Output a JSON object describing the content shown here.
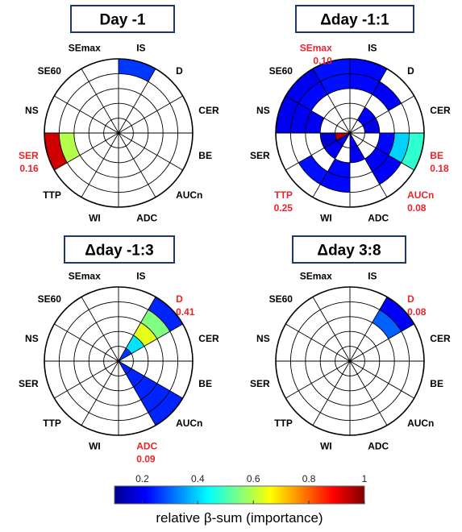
{
  "sectors": [
    "IS",
    "D",
    "CER",
    "BE",
    "AUCn",
    "ADC",
    "WI",
    "TTP",
    "SER",
    "NS",
    "SE60",
    "SEmax"
  ],
  "rings": 5,
  "chart_data": [
    {
      "type": "polar-heatmap",
      "title": "Day -1",
      "cells": [
        {
          "sector": "IS",
          "rings": [
            5
          ],
          "value": 0.18
        },
        {
          "sector": "SER",
          "rings": [
            4
          ],
          "value": 0.55
        },
        {
          "sector": "SER",
          "rings": [
            5
          ],
          "value": 0.92
        }
      ],
      "annotations": [
        {
          "sector": "SER",
          "label": "SER",
          "value": "0.16"
        }
      ]
    },
    {
      "type": "polar-heatmap",
      "title": "Δday -1:1",
      "cells": [
        {
          "sector": "IS",
          "rings": [
            4,
            5
          ],
          "value": 0.13
        },
        {
          "sector": "SEmax",
          "rings": [
            4,
            5
          ],
          "value": 0.14
        },
        {
          "sector": "D",
          "rings": [
            4
          ],
          "value": 0.12
        },
        {
          "sector": "SE60",
          "rings": [
            4
          ],
          "value": 0.13
        },
        {
          "sector": "NS",
          "rings": [
            3,
            4,
            5
          ],
          "value": 0.11
        },
        {
          "sector": "SE60",
          "rings": [
            5
          ],
          "value": 0.11
        },
        {
          "sector": "BE",
          "rings": [
            3
          ],
          "value": 0.13
        },
        {
          "sector": "BE",
          "rings": [
            4
          ],
          "value": 0.33
        },
        {
          "sector": "BE",
          "rings": [
            5
          ],
          "value": 0.42
        },
        {
          "sector": "AUCn",
          "rings": [
            3,
            4
          ],
          "value": 0.12
        },
        {
          "sector": "WI",
          "rings": [
            3,
            4
          ],
          "value": 0.13
        },
        {
          "sector": "TTP",
          "rings": [
            1,
            2
          ],
          "value": 0.12
        },
        {
          "sector": "TTP",
          "rings": [
            4
          ],
          "value": 0.14
        },
        {
          "sector": "SER",
          "rings": [
            1
          ],
          "value": 0.95
        },
        {
          "sector": "SER",
          "rings": [
            2
          ],
          "value": 0.08
        },
        {
          "sector": "ADC",
          "rings": [
            1,
            2
          ],
          "value": 0.12
        },
        {
          "sector": "CER",
          "rings": [
            2
          ],
          "value": 0.1
        },
        {
          "sector": "D",
          "rings": [
            2
          ],
          "value": 0.12
        }
      ],
      "annotations": [
        {
          "sector": "SEmax",
          "label": "SEmax",
          "value": "0.10"
        },
        {
          "sector": "BE",
          "label": "BE",
          "value": "0.18"
        },
        {
          "sector": "AUCn",
          "label": "AUCn",
          "value": "0.08"
        },
        {
          "sector": "TTP",
          "label": "TTP",
          "value": "0.25"
        }
      ]
    },
    {
      "type": "polar-heatmap",
      "title": "Δday -1:3",
      "cells": [
        {
          "sector": "D",
          "rings": [
            1
          ],
          "value": 0.18
        },
        {
          "sector": "D",
          "rings": [
            2
          ],
          "value": 0.35
        },
        {
          "sector": "D",
          "rings": [
            3
          ],
          "value": 0.6
        },
        {
          "sector": "D",
          "rings": [
            4
          ],
          "value": 0.5
        },
        {
          "sector": "D",
          "rings": [
            5
          ],
          "value": 0.16
        },
        {
          "sector": "AUCn",
          "rings": [
            1,
            2,
            3,
            4,
            5
          ],
          "value": 0.16
        }
      ],
      "annotations": [
        {
          "sector": "D",
          "label": "D",
          "value": "0.41"
        },
        {
          "sector": "ADC",
          "label": "ADC",
          "value": "0.09"
        }
      ]
    },
    {
      "type": "polar-heatmap",
      "title": "Δday 3:8",
      "cells": [
        {
          "sector": "D",
          "rings": [
            4
          ],
          "value": 0.22
        },
        {
          "sector": "D",
          "rings": [
            5
          ],
          "value": 0.12
        }
      ],
      "annotations": [
        {
          "sector": "D",
          "label": "D",
          "value": "0.08"
        }
      ]
    }
  ],
  "colorbar": {
    "ticks": [
      "0.2",
      "0.4",
      "0.6",
      "0.8",
      "1"
    ],
    "tick_values": [
      0.2,
      0.4,
      0.6,
      0.8,
      1.0
    ],
    "range": [
      0.1,
      1.0
    ],
    "label": "relative β-sum (importance)",
    "colormap": "jet"
  },
  "colors": {
    "title_box": "#1f3864",
    "highlight": "#e8232b",
    "grid": "#000000"
  }
}
